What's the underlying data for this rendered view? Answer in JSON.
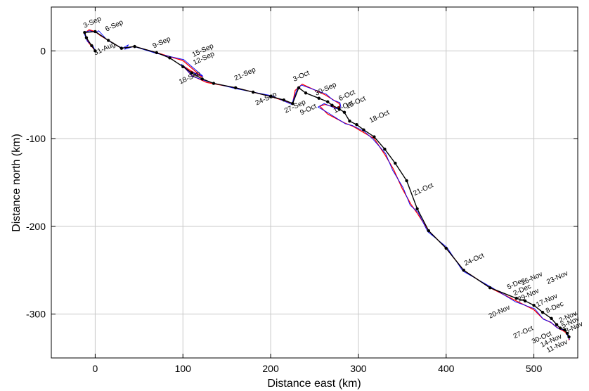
{
  "chart_data": {
    "type": "line",
    "title": "",
    "xlabel": "Distance east (km)",
    "ylabel": "Distance north (km)",
    "xlim": [
      -50,
      550
    ],
    "ylim": [
      -350,
      50
    ],
    "xticks": [
      0,
      100,
      200,
      300,
      400,
      500
    ],
    "yticks": [
      0,
      -100,
      -200,
      -300
    ],
    "grid": true,
    "colors": {
      "smooth": "#ff0000",
      "raw": "#0000ff",
      "points": "#000000",
      "grid": "#c8c8c8"
    },
    "series": [
      {
        "role": "smoothed-track",
        "color": "#ff0000",
        "x": [
          0,
          -3,
          -8,
          -12,
          -7,
          0,
          5,
          15,
          30,
          45,
          70,
          100,
          122,
          108,
          100,
          110,
          127,
          160,
          200,
          225,
          228,
          236,
          262,
          270,
          278,
          279,
          276,
          262,
          256,
          265,
          284,
          294,
          306,
          318,
          330,
          340,
          350,
          360,
          367,
          380,
          400,
          420,
          450,
          480,
          500,
          510,
          520,
          526,
          535,
          540,
          540
        ],
        "y": [
          0,
          4,
          10,
          20,
          24,
          22,
          18,
          12,
          3,
          5,
          -2,
          -11,
          -30,
          -22,
          -17,
          -28,
          -36,
          -42,
          -52,
          -60,
          -45,
          -38,
          -50,
          -55,
          -60,
          -63,
          -65,
          -61,
          -63,
          -72,
          -82,
          -86,
          -93,
          -100,
          -118,
          -135,
          -157,
          -175,
          -185,
          -205,
          -225,
          -250,
          -270,
          -285,
          -295,
          -305,
          -310,
          -315,
          -320,
          -325,
          -330
        ]
      },
      {
        "role": "raw-track",
        "color": "#0000ff",
        "x": [
          0,
          -2,
          -9,
          -13,
          -6,
          1,
          4,
          14,
          31,
          38,
          34,
          44,
          70,
          101,
          123,
          107,
          98,
          111,
          128,
          160,
          201,
          224,
          230,
          235,
          263,
          271,
          279,
          280,
          275,
          261,
          254,
          266,
          285,
          293,
          307,
          317,
          331,
          339,
          351,
          359,
          368,
          379,
          401,
          419,
          451,
          479,
          501,
          511,
          519,
          527,
          536,
          539,
          541
        ],
        "y": [
          0,
          5,
          11,
          21,
          23,
          21,
          23,
          12,
          3,
          7,
          2,
          5,
          -3,
          -10,
          -29,
          -23,
          -15,
          -29,
          -35,
          -43,
          -51,
          -61,
          -44,
          -39,
          -49,
          -56,
          -59,
          -64,
          -66,
          -60,
          -64,
          -71,
          -83,
          -85,
          -92,
          -101,
          -117,
          -136,
          -156,
          -176,
          -184,
          -206,
          -224,
          -251,
          -269,
          -286,
          -294,
          -306,
          -309,
          -316,
          -319,
          -326,
          -329
        ]
      },
      {
        "role": "fixes",
        "color": "#000000",
        "x": [
          0,
          -4,
          -10,
          -12,
          0,
          15,
          30,
          45,
          70,
          85,
          100,
          110,
          122,
          135,
          160,
          180,
          200,
          215,
          225,
          232,
          240,
          255,
          265,
          270,
          278,
          284,
          290,
          298,
          306,
          318,
          330,
          342,
          355,
          367,
          380,
          400,
          420,
          450,
          480,
          490,
          500,
          510,
          520,
          526,
          530,
          535,
          538,
          540
        ],
        "y": [
          0,
          6,
          15,
          21,
          22,
          12,
          3,
          5,
          -2,
          -8,
          -18,
          -25,
          -32,
          -37,
          -42,
          -47,
          -52,
          -56,
          -60,
          -42,
          -48,
          -54,
          -58,
          -62,
          -66,
          -70,
          -80,
          -84,
          -90,
          -98,
          -112,
          -128,
          -148,
          -180,
          -205,
          -225,
          -250,
          -270,
          -282,
          -285,
          -290,
          -298,
          -305,
          -312,
          -316,
          -318,
          -322,
          -326
        ]
      }
    ],
    "annotations": [
      {
        "text": "31-Aug",
        "x": 0,
        "y": -5
      },
      {
        "text": "3-Sep",
        "x": -12,
        "y": 26
      },
      {
        "text": "6-Sep",
        "x": 13,
        "y": 22
      },
      {
        "text": "9-Sep",
        "x": 67,
        "y": 3
      },
      {
        "text": "15-Sep",
        "x": 112,
        "y": -7
      },
      {
        "text": "12-Sep",
        "x": 113,
        "y": -16
      },
      {
        "text": "18-Sep",
        "x": 97,
        "y": -38
      },
      {
        "text": "21-Sep",
        "x": 160,
        "y": -34
      },
      {
        "text": "24-Sep",
        "x": 184,
        "y": -62
      },
      {
        "text": "3-Oct",
        "x": 227,
        "y": -35
      },
      {
        "text": "30-Sep",
        "x": 252,
        "y": -51
      },
      {
        "text": "6-Oct",
        "x": 279,
        "y": -57
      },
      {
        "text": "27-Sep",
        "x": 217,
        "y": -71
      },
      {
        "text": "9-Oct",
        "x": 235,
        "y": -73
      },
      {
        "text": "12-Oct",
        "x": 273,
        "y": -71
      },
      {
        "text": "15-Oct",
        "x": 287,
        "y": -66
      },
      {
        "text": "18-Oct",
        "x": 314,
        "y": -82
      },
      {
        "text": "21-Oct",
        "x": 364,
        "y": -165
      },
      {
        "text": "24-Oct",
        "x": 422,
        "y": -245
      },
      {
        "text": "5-Dec",
        "x": 471,
        "y": -272
      },
      {
        "text": "26-Nov",
        "x": 487,
        "y": -267
      },
      {
        "text": "2-Dec",
        "x": 478,
        "y": -279
      },
      {
        "text": "23-Nov",
        "x": 516,
        "y": -266
      },
      {
        "text": "29-Nov",
        "x": 483,
        "y": -286
      },
      {
        "text": "17-Nov",
        "x": 504,
        "y": -292
      },
      {
        "text": "8-Dec",
        "x": 515,
        "y": -299
      },
      {
        "text": "20-Nov",
        "x": 450,
        "y": -305
      },
      {
        "text": "2-Nov",
        "x": 530,
        "y": -310
      },
      {
        "text": "5-Nov",
        "x": 533,
        "y": -316
      },
      {
        "text": "27-Oct",
        "x": 478,
        "y": -328
      },
      {
        "text": "8-Nov",
        "x": 537,
        "y": -322
      },
      {
        "text": "30-Oct",
        "x": 499,
        "y": -334
      },
      {
        "text": "14-Nov",
        "x": 509,
        "y": -338
      },
      {
        "text": "11-Nov",
        "x": 516,
        "y": -344
      }
    ]
  }
}
